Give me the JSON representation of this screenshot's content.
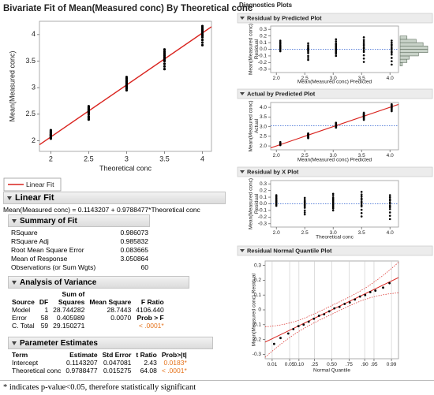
{
  "header": {
    "title": "Bivariate Fit of Mean(Measured conc) By Theoretical conc"
  },
  "bivariate": {
    "type": "scatter",
    "xlabel": "Theoretical conc",
    "ylabel": "Mean(Measured conc)",
    "xlim": [
      1.85,
      4.12
    ],
    "ylim": [
      1.8,
      4.25
    ],
    "xticks": [
      2,
      2.5,
      3,
      3.5,
      4
    ],
    "yticks": [
      2,
      2.5,
      3,
      3.5,
      4
    ],
    "point_color": "#000000",
    "fit_color": "#d9231e",
    "groups": [
      {
        "x": 2,
        "y": [
          2.04,
          2.06,
          2.08,
          2.09,
          2.1,
          2.11,
          2.12,
          2.13,
          2.15,
          2.16,
          2.18,
          2.2
        ]
      },
      {
        "x": 2.5,
        "y": [
          2.4,
          2.43,
          2.46,
          2.5,
          2.52,
          2.54,
          2.55,
          2.57,
          2.58,
          2.6,
          2.62,
          2.65
        ]
      },
      {
        "x": 3,
        "y": [
          2.95,
          2.98,
          3.0,
          3.02,
          3.04,
          3.06,
          3.08,
          3.1,
          3.12,
          3.14,
          3.17,
          3.2
        ]
      },
      {
        "x": 3.5,
        "y": [
          3.35,
          3.4,
          3.45,
          3.5,
          3.52,
          3.55,
          3.57,
          3.6,
          3.62,
          3.65,
          3.68,
          3.72
        ]
      },
      {
        "x": 4,
        "y": [
          3.8,
          3.85,
          3.9,
          3.95,
          3.98,
          4.0,
          4.03,
          4.05,
          4.08,
          4.1,
          4.13,
          4.16
        ]
      }
    ]
  },
  "legend": {
    "label": "Linear Fit"
  },
  "linear_fit": {
    "title": "Linear Fit",
    "equation": "Mean(Measured conc) = 0.1143207 + 0.9788477*Theoretical conc",
    "intercept": 0.1143207,
    "slope": 0.9788477
  },
  "summary_of_fit": {
    "title": "Summary of Fit",
    "rows": [
      [
        "RSquare",
        "0.986073"
      ],
      [
        "RSquare Adj",
        "0.985832"
      ],
      [
        "Root Mean Square Error",
        "0.083665"
      ],
      [
        "Mean of Response",
        "3.050864"
      ],
      [
        "Observations (or Sum Wgts)",
        "60"
      ]
    ]
  },
  "anova": {
    "title": "Analysis of Variance",
    "columns": [
      "Source",
      "DF",
      "Sum of Squares",
      "Mean Square",
      "F Ratio"
    ],
    "p_color": "#e5731c",
    "rows": [
      {
        "source": "Model",
        "df": "1",
        "ss": "28.744282",
        "ms": "28.7443",
        "f": "4106.440"
      },
      {
        "source": "Error",
        "df": "58",
        "ss": "0.405989",
        "ms": "0.0070",
        "f_label": "Prob > F"
      },
      {
        "source": "C. Total",
        "df": "59",
        "ss": "29.150271",
        "prob": "< .0001*"
      }
    ]
  },
  "parameter_estimates": {
    "title": "Parameter Estimates",
    "columns": [
      "Term",
      "Estimate",
      "Std Error",
      "t Ratio",
      "Prob>|t|"
    ],
    "rows": [
      [
        "Intercept",
        "0.1143207",
        "0.047081",
        "2.43",
        "0.0183*"
      ],
      [
        "Theoretical conc",
        "0.9788477",
        "0.015275",
        "64.08",
        "< .0001*"
      ]
    ]
  },
  "diagnostics": {
    "title": "Diagnostics Plots"
  },
  "residual_by_predicted": {
    "title": "Residual by Predicted Plot",
    "xlabel": "Mean(Measured conc) Predicted",
    "ylabel": [
      "Mean(Measured conc)",
      "Residual"
    ],
    "xlim": [
      1.9,
      4.15
    ],
    "ylim": [
      -0.35,
      0.35
    ],
    "xticks": [
      {
        "value": 2,
        "label": "2.0"
      },
      2.5,
      {
        "value": 3,
        "label": "3.0"
      },
      3.5,
      {
        "value": 4,
        "label": "4.0"
      }
    ],
    "yticks": [
      -0.3,
      -0.2,
      -0.1,
      {
        "value": 0,
        "label": "0.0"
      },
      0.1,
      0.2,
      0.3
    ],
    "reference_color": "#2c5fd0",
    "groups": [
      {
        "x": 2.07,
        "y": [
          -0.03,
          -0.01,
          0.01,
          0.02,
          0.03,
          0.04,
          0.05,
          0.06,
          0.08,
          0.09,
          0.11,
          0.13
        ]
      },
      {
        "x": 2.56,
        "y": [
          -0.16,
          -0.13,
          -0.1,
          -0.06,
          -0.04,
          -0.02,
          -0.01,
          0.01,
          0.02,
          0.04,
          0.06,
          0.09
        ]
      },
      {
        "x": 3.05,
        "y": [
          -0.1,
          -0.07,
          -0.05,
          -0.03,
          -0.01,
          0.01,
          0.03,
          0.05,
          0.07,
          0.09,
          0.12,
          0.15
        ]
      },
      {
        "x": 3.54,
        "y": [
          -0.19,
          -0.14,
          -0.09,
          -0.04,
          -0.02,
          0.01,
          0.03,
          0.06,
          0.08,
          0.11,
          0.14,
          0.18
        ]
      },
      {
        "x": 4.03,
        "y": [
          -0.23,
          -0.18,
          -0.13,
          -0.08,
          -0.05,
          -0.03,
          0,
          0.02,
          0.05,
          0.07,
          0.1,
          0.13
        ]
      }
    ],
    "histogram": {
      "bins": [
        -0.25,
        -0.2,
        -0.15,
        -0.1,
        -0.05,
        0,
        0.05,
        0.1,
        0.15,
        0.2
      ],
      "counts": [
        1,
        3,
        4,
        8,
        12,
        12,
        10,
        7,
        3
      ],
      "color": "#c9d3c9"
    }
  },
  "actual_by_predicted": {
    "title": "Actual by Predicted Plot",
    "xlabel": "Mean(Measured conc) Predicted",
    "ylabel": [
      "Mean(Measured conc)",
      "Actual"
    ],
    "xlim": [
      1.9,
      4.15
    ],
    "ylim": [
      1.8,
      4.25
    ],
    "xticks": [
      {
        "value": 2,
        "label": "2.0"
      },
      2.5,
      {
        "value": 3,
        "label": "3.0"
      },
      3.5,
      {
        "value": 4,
        "label": "4.0"
      }
    ],
    "yticks": [
      {
        "value": 2,
        "label": "2.0"
      },
      2.5,
      {
        "value": 3,
        "label": "3.0"
      },
      3.5,
      {
        "value": 4,
        "label": "4.0"
      }
    ],
    "mean_line": 3.050864
  },
  "residual_by_x": {
    "title": "Residual by X Plot",
    "xlabel": "Theoretical conc",
    "ylabel": [
      "Mean(Measured conc)",
      "Residual"
    ],
    "xlim": [
      1.9,
      4.15
    ],
    "ylim": [
      -0.35,
      0.35
    ],
    "xticks": [
      {
        "value": 2,
        "label": "2.0"
      },
      2.5,
      {
        "value": 3,
        "label": "3.0"
      },
      3.5,
      {
        "value": 4,
        "label": "4.0"
      }
    ],
    "yticks": [
      -0.3,
      -0.2,
      -0.1,
      {
        "value": 0,
        "label": "0.0"
      },
      0.1,
      0.2,
      0.3
    ]
  },
  "normal_quantile": {
    "title": "Residual Normal Quantile Plot",
    "xlabel": "Normal Quantile",
    "ylabel": "Mean(Measured conc) Residual",
    "xlim": [
      -2.6,
      2.6
    ],
    "ylim": [
      -0.33,
      0.33
    ],
    "xticks": [
      {
        "value": -2.326,
        "label": "0.01"
      },
      {
        "value": -1.645,
        "label": "0.05"
      },
      {
        "value": -1.2816,
        "label": "0.10"
      },
      {
        "value": -0.674,
        "label": ".25"
      },
      {
        "value": 0,
        "label": "0.50"
      },
      {
        "value": 0.674,
        "label": ".75"
      },
      {
        "value": 1.2816,
        "label": ".90"
      },
      {
        "value": 1.645,
        "label": ".95"
      },
      {
        "value": 2.326,
        "label": "0.99"
      }
    ],
    "yticks": [
      -0.3,
      -0.2,
      -0.1,
      0,
      0.1,
      0.2,
      0.3
    ],
    "line": {
      "intercept": 0,
      "slope": 0.083665
    },
    "points": [
      [
        -2.25,
        -0.23
      ],
      [
        -2.0,
        -0.19
      ],
      [
        -1.7,
        -0.16
      ],
      [
        -1.5,
        -0.13
      ],
      [
        -1.3,
        -0.11
      ],
      [
        -1.1,
        -0.1
      ],
      [
        -0.9,
        -0.08
      ],
      [
        -0.7,
        -0.06
      ],
      [
        -0.5,
        -0.04
      ],
      [
        -0.3,
        -0.03
      ],
      [
        -0.1,
        -0.01
      ],
      [
        0.1,
        0.01
      ],
      [
        0.3,
        0.02
      ],
      [
        0.5,
        0.04
      ],
      [
        0.7,
        0.05
      ],
      [
        0.9,
        0.07
      ],
      [
        1.1,
        0.09
      ],
      [
        1.3,
        0.1
      ],
      [
        1.5,
        0.12
      ],
      [
        1.7,
        0.13
      ],
      [
        2.0,
        0.15
      ],
      [
        2.25,
        0.18
      ]
    ]
  },
  "footnote": "* indicates p-value<0.05, therefore statistically significant"
}
